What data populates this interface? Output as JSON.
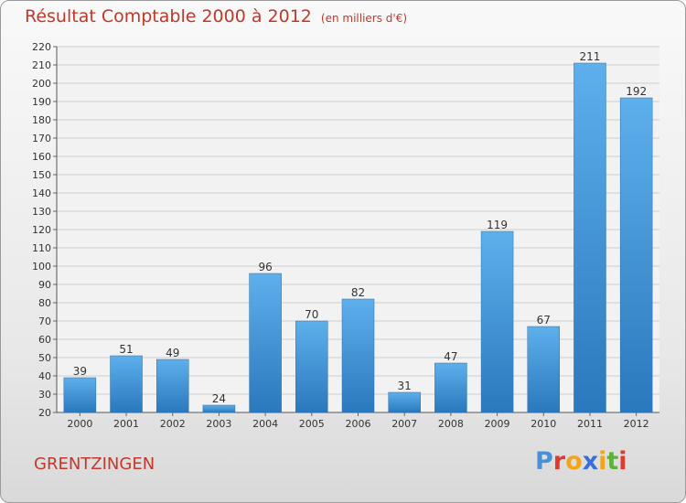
{
  "header": {
    "title": "Résultat Comptable 2000 à 2012",
    "subtitle": "(en milliers d'€)"
  },
  "footer": {
    "commune": "GRENTZINGEN",
    "logo_text": "Proxiti",
    "logo_colors": [
      "#4a90d9",
      "#e03a2f",
      "#f2a51a",
      "#3a6fd9",
      "#f2a51a",
      "#5db33a",
      "#e03a2f"
    ]
  },
  "chart_data": {
    "type": "bar",
    "categories": [
      "2000",
      "2001",
      "2002",
      "2003",
      "2004",
      "2005",
      "2006",
      "2007",
      "2008",
      "2009",
      "2010",
      "2011",
      "2012"
    ],
    "values": [
      39,
      51,
      49,
      24,
      96,
      70,
      82,
      31,
      47,
      119,
      67,
      211,
      192
    ],
    "title": "Résultat Comptable 2000 à 2012",
    "xlabel": "",
    "ylabel": "",
    "ylim": [
      20,
      220
    ],
    "yticks": [
      20,
      30,
      40,
      50,
      60,
      70,
      80,
      90,
      100,
      110,
      120,
      130,
      140,
      150,
      160,
      170,
      180,
      190,
      200,
      210,
      220
    ],
    "grid": true,
    "bar_color": "#3d8fd6"
  }
}
